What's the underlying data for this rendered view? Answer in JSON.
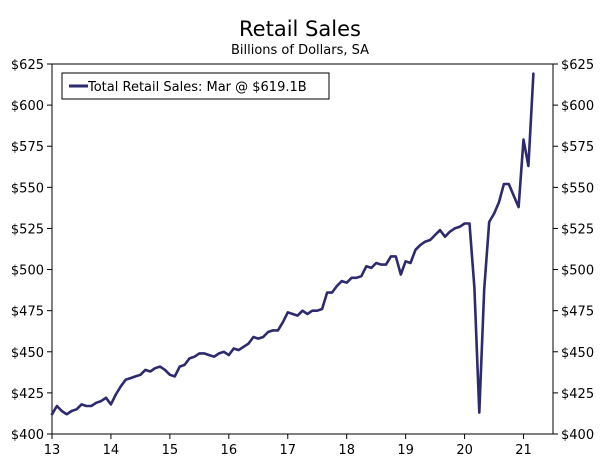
{
  "chart_data": {
    "type": "line",
    "title": "Retail Sales",
    "subtitle": "Billions of Dollars, SA",
    "xlabel": "",
    "ylabel": "",
    "xlim": [
      2013.0,
      2021.5
    ],
    "ylim": [
      400,
      625
    ],
    "y_ticks": [
      "$400",
      "$425",
      "$450",
      "$475",
      "$500",
      "$525",
      "$550",
      "$575",
      "$600",
      "$625"
    ],
    "y_tick_values": [
      400,
      425,
      450,
      475,
      500,
      525,
      550,
      575,
      600,
      625
    ],
    "x_ticks": [
      "13",
      "14",
      "15",
      "16",
      "17",
      "18",
      "19",
      "20",
      "21"
    ],
    "x_tick_values": [
      2013,
      2014,
      2015,
      2016,
      2017,
      2018,
      2019,
      2020,
      2021
    ],
    "grid": false,
    "dual_y_axis": true,
    "legend": {
      "placement": "top-left",
      "boxed": true
    },
    "colors": {
      "series": "#2e2a6e",
      "axis": "#000000"
    },
    "series": [
      {
        "name": "Total Retail Sales: Mar @ $619.1B",
        "x": [
          2013.0,
          2013.083,
          2013.167,
          2013.25,
          2013.333,
          2013.417,
          2013.5,
          2013.583,
          2013.667,
          2013.75,
          2013.833,
          2013.917,
          2014.0,
          2014.083,
          2014.167,
          2014.25,
          2014.333,
          2014.417,
          2014.5,
          2014.583,
          2014.667,
          2014.75,
          2014.833,
          2014.917,
          2015.0,
          2015.083,
          2015.167,
          2015.25,
          2015.333,
          2015.417,
          2015.5,
          2015.583,
          2015.667,
          2015.75,
          2015.833,
          2015.917,
          2016.0,
          2016.083,
          2016.167,
          2016.25,
          2016.333,
          2016.417,
          2016.5,
          2016.583,
          2016.667,
          2016.75,
          2016.833,
          2016.917,
          2017.0,
          2017.083,
          2017.167,
          2017.25,
          2017.333,
          2017.417,
          2017.5,
          2017.583,
          2017.667,
          2017.75,
          2017.833,
          2017.917,
          2018.0,
          2018.083,
          2018.167,
          2018.25,
          2018.333,
          2018.417,
          2018.5,
          2018.583,
          2018.667,
          2018.75,
          2018.833,
          2018.917,
          2019.0,
          2019.083,
          2019.167,
          2019.25,
          2019.333,
          2019.417,
          2019.5,
          2019.583,
          2019.667,
          2019.75,
          2019.833,
          2019.917,
          2020.0,
          2020.083,
          2020.167,
          2020.25,
          2020.333,
          2020.417,
          2020.5,
          2020.583,
          2020.667,
          2020.75,
          2020.833,
          2020.917,
          2021.0,
          2021.083,
          2021.167
        ],
        "values": [
          412,
          417,
          414,
          412,
          414,
          415,
          418,
          417,
          417,
          419,
          420,
          422,
          418,
          424,
          429,
          433,
          434,
          435,
          436,
          439,
          438,
          440,
          441,
          439,
          436,
          435,
          441,
          442,
          446,
          447,
          449,
          449,
          448,
          447,
          449,
          450,
          448,
          452,
          451,
          453,
          455,
          459,
          458,
          459,
          462,
          463,
          463,
          468,
          474,
          473,
          472,
          475,
          473,
          475,
          475,
          476,
          486,
          486,
          490,
          493,
          492,
          495,
          495,
          496,
          502,
          501,
          504,
          503,
          503,
          508,
          508,
          497,
          505,
          504,
          512,
          515,
          517,
          518,
          521,
          524,
          520,
          523,
          525,
          526,
          528,
          528,
          489,
          413,
          488,
          529,
          534,
          541,
          552,
          552,
          545,
          538,
          579,
          563,
          619.1
        ]
      }
    ]
  }
}
